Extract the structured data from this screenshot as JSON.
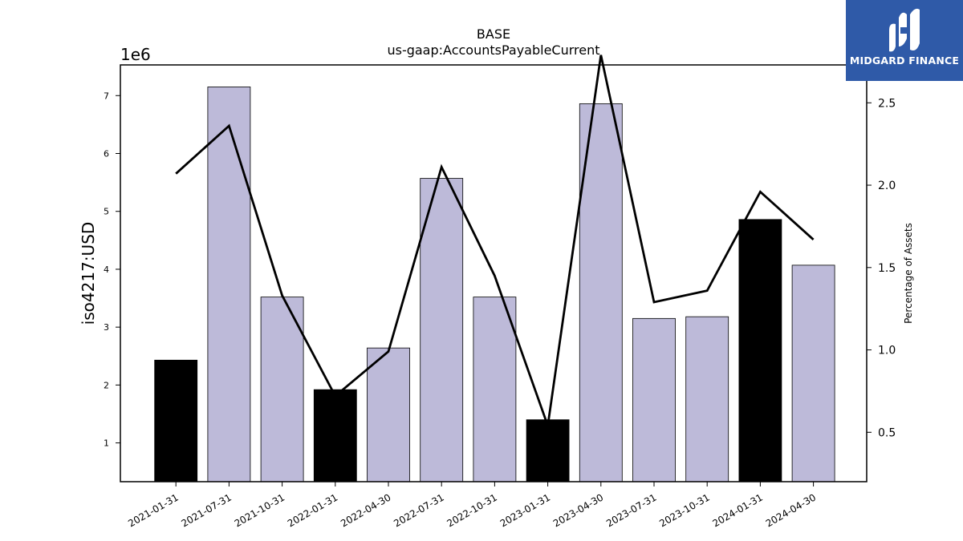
{
  "chart_data": {
    "type": "bar",
    "title": "BASE",
    "subtitle": "us-gaap:AccountsPayableCurrent",
    "ylabel": "iso4217:USD",
    "y_offset_label": "1e6",
    "y2label": "Percentage of Assets",
    "categories": [
      "2021-01-31",
      "2021-07-31",
      "2021-10-31",
      "2022-01-31",
      "2022-04-30",
      "2022-07-31",
      "2022-10-31",
      "2023-01-31",
      "2023-04-30",
      "2023-07-31",
      "2023-10-31",
      "2024-01-31",
      "2024-04-30"
    ],
    "series": [
      {
        "type": "bar",
        "axis": "left",
        "values": [
          2430000,
          7150000,
          3520000,
          1920000,
          2640000,
          5570000,
          3520000,
          1400000,
          6860000,
          3150000,
          3180000,
          4860000,
          4070000
        ],
        "colors": [
          "#000000",
          "#bdbad9",
          "#bdbad9",
          "#000000",
          "#bdbad9",
          "#bdbad9",
          "#bdbad9",
          "#000000",
          "#bdbad9",
          "#bdbad9",
          "#bdbad9",
          "#000000",
          "#bdbad9"
        ]
      },
      {
        "type": "line",
        "axis": "right",
        "color": "#000000",
        "values": [
          2.07,
          2.36,
          1.33,
          0.72,
          0.99,
          2.11,
          1.45,
          0.54,
          2.79,
          1.29,
          1.36,
          1.96,
          1.67
        ]
      }
    ],
    "ylim": [
      330000,
      7530000
    ],
    "y_ticks": [
      1000000,
      2000000,
      3000000,
      4000000,
      5000000,
      6000000,
      7000000
    ],
    "y_tick_labels": [
      "1",
      "2",
      "3",
      "4",
      "5",
      "6",
      "7"
    ],
    "y2lim": [
      0.2,
      2.73
    ],
    "y2_ticks": [
      0.5,
      1.0,
      1.5,
      2.0,
      2.5
    ],
    "y2_tick_labels": [
      "0.5",
      "1.0",
      "1.5",
      "2.0",
      "2.5"
    ],
    "grid": false
  },
  "logo": {
    "text": "MIDGARD FINANCE",
    "color": "#2f5aa8"
  }
}
